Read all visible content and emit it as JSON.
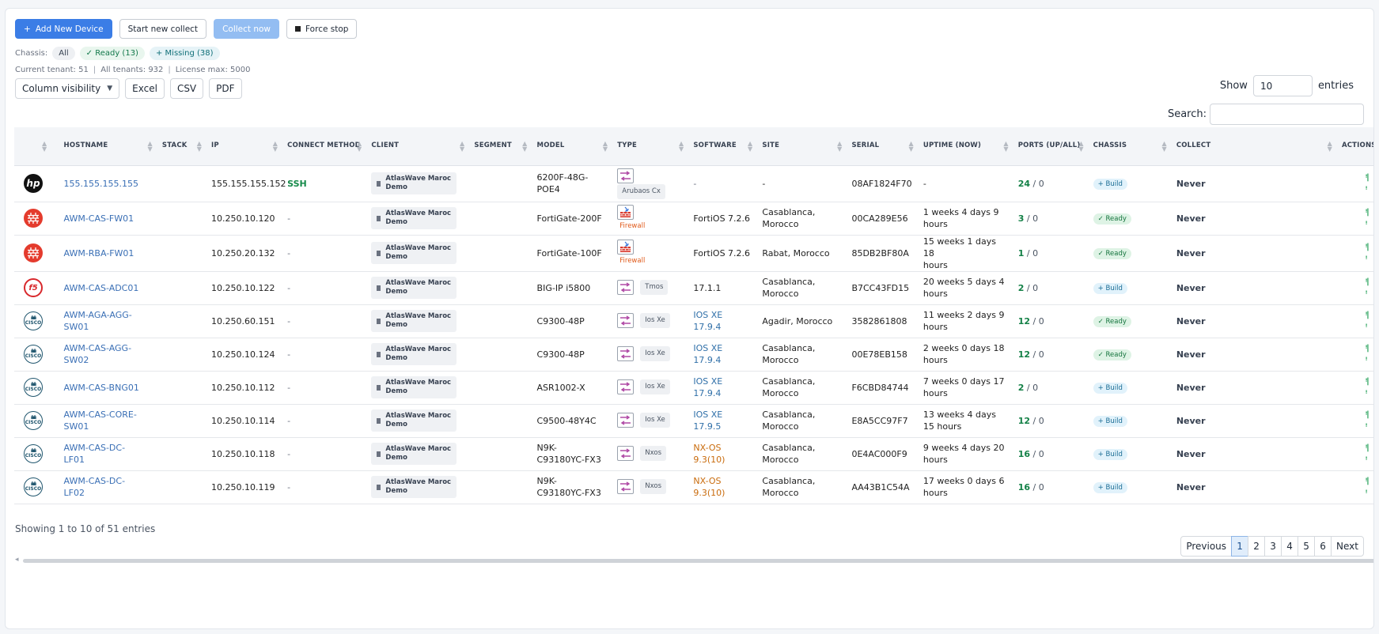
{
  "toolbar": {
    "add_label": "Add New Device",
    "start_label": "Start new collect",
    "collect_label": "Collect now",
    "stop_label": "Force stop"
  },
  "chassis": {
    "label": "Chassis:",
    "all": "All",
    "ready": "Ready (13)",
    "missing": "Missing (38)"
  },
  "tenant": {
    "current": "Current tenant: 51",
    "all": "All tenants: 932",
    "license": "License max: 5000"
  },
  "export": {
    "column_visibility": "Column visibility",
    "excel": "Excel",
    "csv": "CSV",
    "pdf": "PDF"
  },
  "show": {
    "prefix": "Show",
    "value": "10",
    "suffix": "entries"
  },
  "search": {
    "label": "Search:"
  },
  "columns": [
    "Hostname",
    "Stack",
    "IP",
    "Connect Method",
    "Client",
    "Segment",
    "Model",
    "Type",
    "Software",
    "Site",
    "Serial",
    "Uptime (now)",
    "Ports (up/all)",
    "Chassis",
    "Collect",
    "Actions"
  ],
  "rows": [
    {
      "logo": "hp",
      "hostname": "155.155.155.155",
      "ip": "155.155.155.152",
      "method": "SSH",
      "client_l1": "AtlasWave Maroc",
      "client_l2": "Demo",
      "model_l1": "6200F-48G-",
      "model_l2": "POE4",
      "type_icon": "switch-icon",
      "type_label": "Arubaos Cx",
      "type_layout": "stack",
      "software_l1": "-",
      "software_l2": "",
      "software_color": "plain",
      "site_l1": "-",
      "site_l2": "",
      "serial": "08AF1824F70",
      "uptime_l1": "-",
      "uptime_l2": "",
      "ports_up": "24",
      "ports_all": "/ 0",
      "chassis": "+ Build",
      "collect": "Never"
    },
    {
      "logo": "fortinet",
      "hostname": "AWM-CAS-FW01",
      "ip": "10.250.10.120",
      "method": "-",
      "client_l1": "AtlasWave Maroc",
      "client_l2": "Demo",
      "model_l1": "FortiGate-200F",
      "model_l2": "",
      "type_icon": "firewall-icon",
      "type_label": "Firewall",
      "type_layout": "firewall",
      "software_l1": "FortiOS 7.2.6",
      "software_l2": "",
      "software_color": "plain",
      "site_l1": "Casablanca,",
      "site_l2": "Morocco",
      "serial": "00CA289E56",
      "uptime_l1": "1 weeks 4 days 9",
      "uptime_l2": "hours",
      "ports_up": "3",
      "ports_all": "/ 0",
      "chassis": "✓ Ready",
      "collect": "Never"
    },
    {
      "logo": "fortinet",
      "hostname": "AWM-RBA-FW01",
      "ip": "10.250.20.132",
      "method": "-",
      "client_l1": "AtlasWave Maroc",
      "client_l2": "Demo",
      "model_l1": "FortiGate-100F",
      "model_l2": "",
      "type_icon": "firewall-icon",
      "type_label": "Firewall",
      "type_layout": "firewall",
      "software_l1": "FortiOS 7.2.6",
      "software_l2": "",
      "software_color": "plain",
      "site_l1": "Rabat, Morocco",
      "site_l2": "",
      "serial": "85DB2BF80A",
      "uptime_l1": "15 weeks 1 days 18",
      "uptime_l2": "hours",
      "ports_up": "1",
      "ports_all": "/ 0",
      "chassis": "✓ Ready",
      "collect": "Never"
    },
    {
      "logo": "f5",
      "hostname": "AWM-CAS-ADC01",
      "ip": "10.250.10.122",
      "method": "-",
      "client_l1": "AtlasWave Maroc",
      "client_l2": "Demo",
      "model_l1": "BIG-IP i5800",
      "model_l2": "",
      "type_icon": "switch-icon",
      "type_label": "Tmos",
      "type_layout": "inline",
      "software_l1": "17.1.1",
      "software_l2": "",
      "software_color": "plain",
      "site_l1": "Casablanca,",
      "site_l2": "Morocco",
      "serial": "B7CC43FD15",
      "uptime_l1": "20 weeks 5 days 4",
      "uptime_l2": "hours",
      "ports_up": "2",
      "ports_all": "/ 0",
      "chassis": "+ Build",
      "collect": "Never"
    },
    {
      "logo": "cisco",
      "hostname": "AWM-AGA-AGG-",
      "hostname_l2": "SW01",
      "ip": "10.250.60.151",
      "method": "-",
      "client_l1": "AtlasWave Maroc",
      "client_l2": "Demo",
      "model_l1": "C9300-48P",
      "model_l2": "",
      "type_icon": "switch-icon",
      "type_label": "Ios Xe",
      "type_layout": "inline",
      "software_l1": "IOS XE 17.9.4",
      "software_l2": "",
      "software_color": "blue",
      "site_l1": "Agadir, Morocco",
      "site_l2": "",
      "serial": "3582861808",
      "uptime_l1": "11 weeks 2 days 9",
      "uptime_l2": "hours",
      "ports_up": "12",
      "ports_all": "/ 0",
      "chassis": "✓ Ready",
      "collect": "Never"
    },
    {
      "logo": "cisco",
      "hostname": "AWM-CAS-AGG-",
      "hostname_l2": "SW02",
      "ip": "10.250.10.124",
      "method": "-",
      "client_l1": "AtlasWave Maroc",
      "client_l2": "Demo",
      "model_l1": "C9300-48P",
      "model_l2": "",
      "type_icon": "switch-icon",
      "type_label": "Ios Xe",
      "type_layout": "inline",
      "software_l1": "IOS XE 17.9.4",
      "software_l2": "",
      "software_color": "blue",
      "site_l1": "Casablanca,",
      "site_l2": "Morocco",
      "serial": "00E78EB158",
      "uptime_l1": "2 weeks 0 days 18",
      "uptime_l2": "hours",
      "ports_up": "12",
      "ports_all": "/ 0",
      "chassis": "✓ Ready",
      "collect": "Never"
    },
    {
      "logo": "cisco",
      "hostname": "AWM-CAS-BNG01",
      "ip": "10.250.10.112",
      "method": "-",
      "client_l1": "AtlasWave Maroc",
      "client_l2": "Demo",
      "model_l1": "ASR1002-X",
      "model_l2": "",
      "type_icon": "switch-icon",
      "type_label": "Ios Xe",
      "type_layout": "inline",
      "software_l1": "IOS XE 17.9.4",
      "software_l2": "",
      "software_color": "blue",
      "site_l1": "Casablanca,",
      "site_l2": "Morocco",
      "serial": "F6CBD84744",
      "uptime_l1": "7 weeks 0 days 17",
      "uptime_l2": "hours",
      "ports_up": "2",
      "ports_all": "/ 0",
      "chassis": "+ Build",
      "collect": "Never"
    },
    {
      "logo": "cisco",
      "hostname": "AWM-CAS-CORE-",
      "hostname_l2": "SW01",
      "ip": "10.250.10.114",
      "method": "-",
      "client_l1": "AtlasWave Maroc",
      "client_l2": "Demo",
      "model_l1": "C9500-48Y4C",
      "model_l2": "",
      "type_icon": "switch-icon",
      "type_label": "Ios Xe",
      "type_layout": "inline",
      "software_l1": "IOS XE 17.9.5",
      "software_l2": "",
      "software_color": "blue",
      "site_l1": "Casablanca,",
      "site_l2": "Morocco",
      "serial": "E8A5CC97F7",
      "uptime_l1": "13 weeks 4 days",
      "uptime_l2": "15 hours",
      "ports_up": "12",
      "ports_all": "/ 0",
      "chassis": "+ Build",
      "collect": "Never"
    },
    {
      "logo": "cisco",
      "hostname": "AWM-CAS-DC-",
      "hostname_l2": "LF01",
      "ip": "10.250.10.118",
      "method": "-",
      "client_l1": "AtlasWave Maroc",
      "client_l2": "Demo",
      "model_l1": "N9K-",
      "model_l2": "C93180YC-FX3",
      "type_icon": "switch-icon",
      "type_label": "Nxos",
      "type_layout": "inline",
      "software_l1": "NX-OS",
      "software_l2": "9.3(10)",
      "software_color": "orange",
      "site_l1": "Casablanca,",
      "site_l2": "Morocco",
      "serial": "0E4AC000F9",
      "uptime_l1": "9 weeks 4 days 20",
      "uptime_l2": "hours",
      "ports_up": "16",
      "ports_all": "/ 0",
      "chassis": "+ Build",
      "collect": "Never"
    },
    {
      "logo": "cisco",
      "hostname": "AWM-CAS-DC-",
      "hostname_l2": "LF02",
      "ip": "10.250.10.119",
      "method": "-",
      "client_l1": "AtlasWave Maroc",
      "client_l2": "Demo",
      "model_l1": "N9K-",
      "model_l2": "C93180YC-FX3",
      "type_icon": "switch-icon",
      "type_label": "Nxos",
      "type_layout": "inline",
      "software_l1": "NX-OS",
      "software_l2": "9.3(10)",
      "software_color": "orange",
      "site_l1": "Casablanca,",
      "site_l2": "Morocco",
      "serial": "AA43B1C54A",
      "uptime_l1": "17 weeks 0 days 6",
      "uptime_l2": "hours",
      "ports_up": "16",
      "ports_all": "/ 0",
      "chassis": "+ Build",
      "collect": "Never"
    }
  ],
  "footer": {
    "info": "Showing 1 to 10 of 51 entries"
  },
  "pagination": {
    "previous": "Previous",
    "pages": [
      "1",
      "2",
      "3",
      "4",
      "5",
      "6"
    ],
    "next": "Next",
    "active": "1"
  },
  "colors": {
    "primary": "#3b7de6",
    "ready": "#14743d",
    "build": "#1a6c94",
    "link": "#3a6fb5"
  },
  "logo_text": {
    "hp": "hp",
    "f5": "f5",
    "cisco": "CISCO"
  }
}
